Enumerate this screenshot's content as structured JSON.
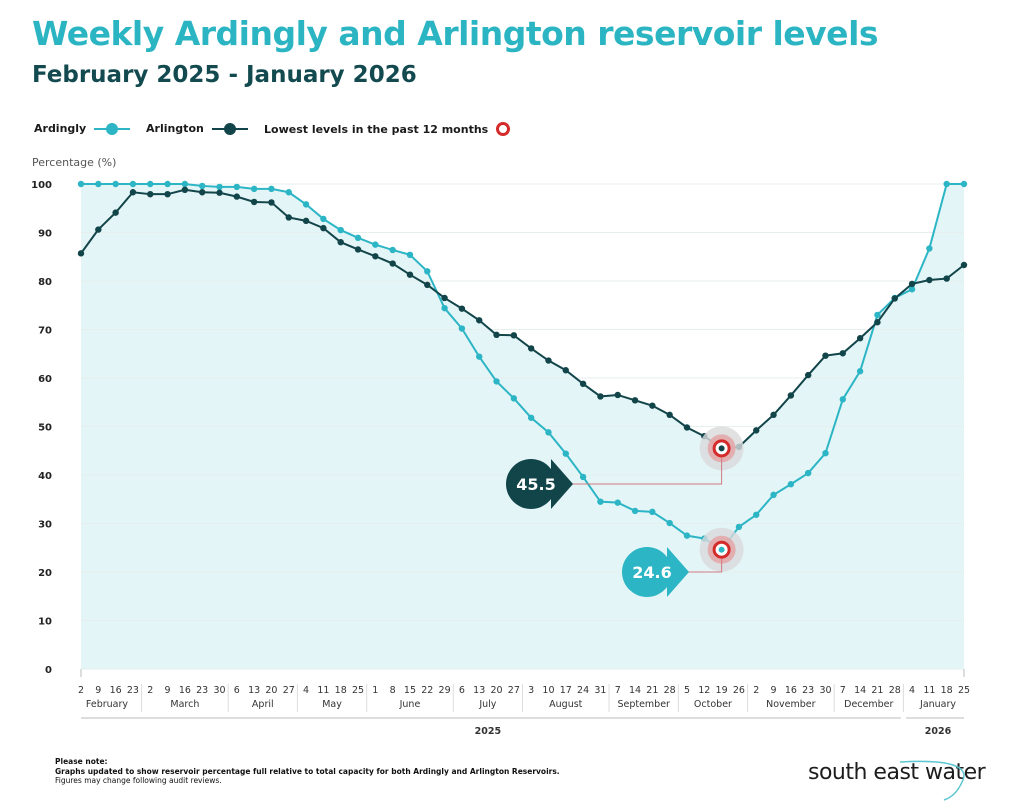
{
  "header": {
    "title": "Weekly Ardingly and Arlington reservoir levels",
    "subtitle": "February 2025 - January 2026"
  },
  "legend": {
    "ardingly": "Ardingly",
    "arlington": "Arlington",
    "lowest": "Lowest levels in the past 12 months"
  },
  "colors": {
    "ardingly": "#2cb5c5",
    "arlington": "#12454a",
    "lowest_marker": "#d42a2a",
    "area_fill": "#e4f5f7"
  },
  "footer": {
    "note_heading": "Please note:",
    "note_line1": "Graphs updated to show reservoir percentage full relative to total capacity for both Ardingly and Arlington Reservoirs.",
    "note_line2": "Figures may change following audit reviews.",
    "logo_text": "south east water"
  },
  "chart_data": {
    "type": "line",
    "title": "Weekly Ardingly and Arlington reservoir levels",
    "subtitle": "February 2025 - January 2026",
    "ylabel": "Percentage (%)",
    "ylim": [
      0,
      100
    ],
    "yticks": [
      0,
      10,
      20,
      30,
      40,
      50,
      60,
      70,
      80,
      90,
      100
    ],
    "grid": true,
    "legend_position": "top-left",
    "months": [
      {
        "name": "February",
        "days": [
          "2",
          "9",
          "16",
          "23"
        ],
        "year": "2025"
      },
      {
        "name": "March",
        "days": [
          "2",
          "9",
          "16",
          "23",
          "30"
        ],
        "year": "2025"
      },
      {
        "name": "April",
        "days": [
          "6",
          "13",
          "20",
          "27"
        ],
        "year": "2025"
      },
      {
        "name": "May",
        "days": [
          "4",
          "11",
          "18",
          "25"
        ],
        "year": "2025"
      },
      {
        "name": "June",
        "days": [
          "1",
          "8",
          "15",
          "22",
          "29"
        ],
        "year": "2025"
      },
      {
        "name": "July",
        "days": [
          "6",
          "13",
          "20",
          "27"
        ],
        "year": "2025"
      },
      {
        "name": "August",
        "days": [
          "3",
          "10",
          "17",
          "24",
          "31"
        ],
        "year": "2025"
      },
      {
        "name": "September",
        "days": [
          "7",
          "14",
          "21",
          "28"
        ],
        "year": "2025"
      },
      {
        "name": "October",
        "days": [
          "5",
          "12",
          "19",
          "26"
        ],
        "year": "2025"
      },
      {
        "name": "November",
        "days": [
          "2",
          "9",
          "16",
          "23",
          "30"
        ],
        "year": "2025"
      },
      {
        "name": "December",
        "days": [
          "7",
          "14",
          "21",
          "28"
        ],
        "year": "2025"
      },
      {
        "name": "January",
        "days": [
          "4",
          "11",
          "18",
          "25"
        ],
        "year": "2026"
      }
    ],
    "years": [
      "2025",
      "2026"
    ],
    "series": [
      {
        "name": "Ardingly",
        "values": [
          100,
          100,
          100,
          100,
          100,
          100,
          100,
          99.6,
          99.4,
          99.4,
          99,
          99,
          98.3,
          95.8,
          92.8,
          90.5,
          88.9,
          87.5,
          86.4,
          85.4,
          82,
          74.4,
          70.2,
          64.4,
          59.3,
          55.8,
          51.8,
          48.8,
          44.4,
          39.6,
          34.5,
          34.3,
          32.6,
          32.4,
          30.1,
          27.5,
          26.9,
          24.6,
          29.3,
          31.8,
          35.9,
          38.1,
          40.4,
          44.5,
          55.6,
          61.4,
          73,
          76.5,
          78.3,
          86.7,
          100,
          100
        ]
      },
      {
        "name": "Arlington",
        "values": [
          85.7,
          90.6,
          94.1,
          98.3,
          97.9,
          97.9,
          98.8,
          98.3,
          98.2,
          97.4,
          96.3,
          96.2,
          93.1,
          92.4,
          90.9,
          88,
          86.5,
          85.1,
          83.6,
          81.3,
          79.2,
          76.5,
          74.3,
          71.9,
          68.9,
          68.8,
          66.1,
          63.6,
          61.6,
          58.8,
          56.2,
          56.5,
          55.4,
          54.3,
          52.4,
          49.8,
          48,
          45.5,
          45.8,
          49.2,
          52.4,
          56.4,
          60.6,
          64.6,
          65.1,
          68.2,
          71.5,
          76.4,
          79.4,
          80.2,
          80.5,
          83.3
        ]
      }
    ],
    "annotations": [
      {
        "series": "Arlington",
        "label": "45.5",
        "month": "October",
        "day": "19",
        "value": 45.5
      },
      {
        "series": "Ardingly",
        "label": "24.6",
        "month": "October",
        "day": "19",
        "value": 24.6
      }
    ]
  }
}
